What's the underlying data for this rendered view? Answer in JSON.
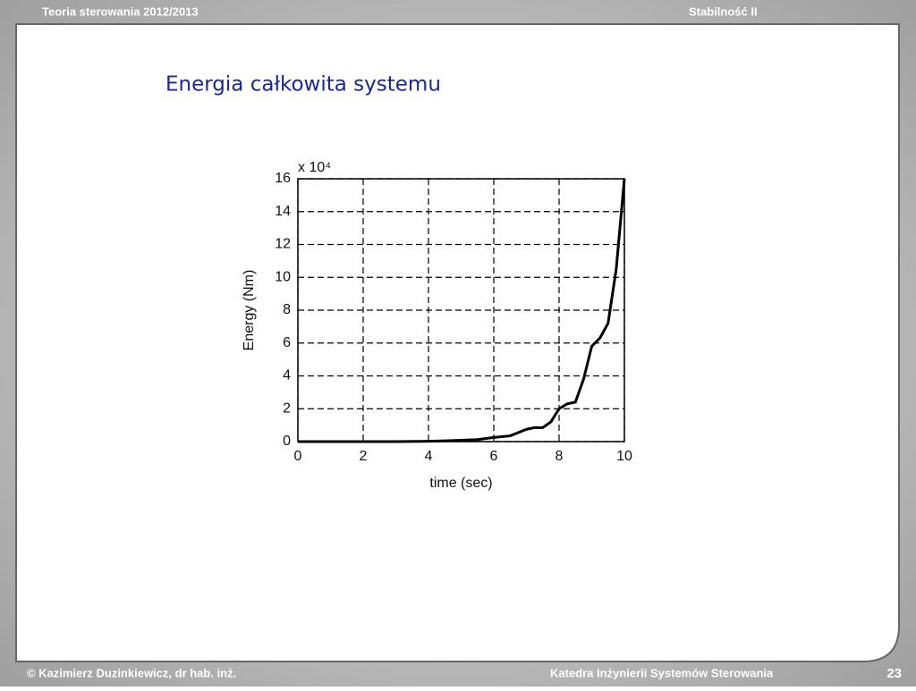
{
  "header": {
    "course": "Teoria sterowania 2012/2013",
    "topic": "Stabilność II"
  },
  "slide_title": "Energia całkowita systemu",
  "footer": {
    "author": "© Kazimierz Duzinkiewicz, dr hab. inż.",
    "department": "Katedra Inżynierii Systemów Sterowania",
    "page": "23"
  },
  "chart_data": {
    "type": "line",
    "xlabel": "time (sec)",
    "ylabel": "Energy (Nm)",
    "y_multiplier": "x 10⁴",
    "x": [
      0,
      1,
      2,
      3,
      4,
      4.5,
      5,
      5.5,
      6,
      6.5,
      7,
      7.25,
      7.5,
      7.75,
      8,
      8.25,
      8.5,
      8.75,
      9,
      9.25,
      9.5,
      9.75,
      10
    ],
    "series": [
      {
        "color": "#000000",
        "values": [
          0,
          0,
          0,
          0,
          0.02,
          0.05,
          0.08,
          0.12,
          0.25,
          0.35,
          0.75,
          0.85,
          0.85,
          1.2,
          2.0,
          2.3,
          2.4,
          3.8,
          5.8,
          6.3,
          7.2,
          10.5,
          16
        ]
      }
    ],
    "xlim": [
      0,
      10
    ],
    "ylim": [
      0,
      16
    ],
    "xticks": [
      0,
      2,
      4,
      6,
      8,
      10
    ],
    "yticks": [
      0,
      2,
      4,
      6,
      8,
      10,
      12,
      14,
      16
    ],
    "grid": true
  }
}
